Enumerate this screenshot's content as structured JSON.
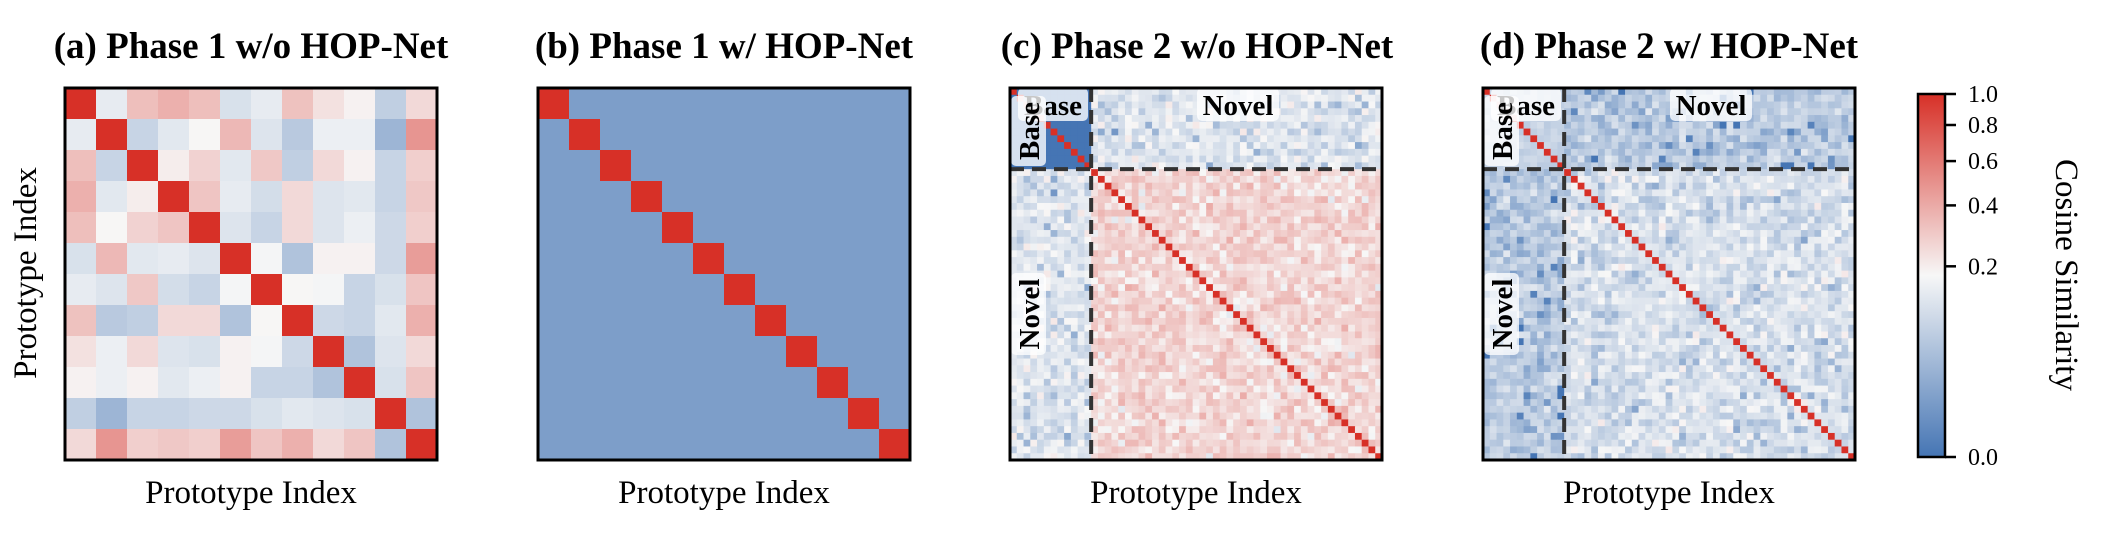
{
  "colors": {
    "low": "#4575b4",
    "mid": "#f7f7f7",
    "high": "#d73027",
    "divider": "#333333"
  },
  "chart_data": [
    {
      "type": "heatmap",
      "title": "(a) Phase 1 w/o HOP-Net",
      "xlabel": "Prototype Index",
      "ylabel": "Prototype Index",
      "matrix": [
        [
          1,
          0.14,
          0.33,
          0.38,
          0.33,
          0.11,
          0.14,
          0.32,
          0.23,
          0.19,
          0.07,
          0.25
        ],
        [
          0.14,
          1,
          0.08,
          0.13,
          0.18,
          0.35,
          0.12,
          0.06,
          0.15,
          0.15,
          0.03,
          0.48
        ],
        [
          0.33,
          0.08,
          1,
          0.2,
          0.27,
          0.13,
          0.3,
          0.07,
          0.25,
          0.19,
          0.08,
          0.28
        ],
        [
          0.38,
          0.13,
          0.2,
          1,
          0.31,
          0.14,
          0.1,
          0.25,
          0.12,
          0.13,
          0.08,
          0.3
        ],
        [
          0.33,
          0.18,
          0.27,
          0.31,
          1,
          0.12,
          0.08,
          0.25,
          0.12,
          0.15,
          0.09,
          0.28
        ],
        [
          0.11,
          0.35,
          0.13,
          0.14,
          0.12,
          1,
          0.17,
          0.05,
          0.19,
          0.19,
          0.09,
          0.45
        ],
        [
          0.14,
          0.12,
          0.3,
          0.1,
          0.08,
          0.17,
          1,
          0.18,
          0.17,
          0.08,
          0.11,
          0.31
        ],
        [
          0.32,
          0.06,
          0.07,
          0.25,
          0.25,
          0.05,
          0.18,
          1,
          0.09,
          0.08,
          0.13,
          0.38
        ],
        [
          0.23,
          0.15,
          0.25,
          0.12,
          0.11,
          0.19,
          0.17,
          0.09,
          1,
          0.05,
          0.12,
          0.25
        ],
        [
          0.19,
          0.15,
          0.19,
          0.13,
          0.15,
          0.19,
          0.08,
          0.08,
          0.05,
          1,
          0.11,
          0.31
        ],
        [
          0.07,
          0.03,
          0.08,
          0.08,
          0.09,
          0.09,
          0.11,
          0.13,
          0.12,
          0.11,
          1,
          0.05
        ],
        [
          0.25,
          0.48,
          0.28,
          0.3,
          0.28,
          0.45,
          0.31,
          0.38,
          0.25,
          0.31,
          0.05,
          1
        ]
      ]
    },
    {
      "type": "heatmap",
      "title": "(b) Phase 1 w/ HOP-Net",
      "xlabel": "Prototype Index",
      "size": 12,
      "diagonal": 1.0,
      "off_diagonal": 0.01
    },
    {
      "type": "heatmap",
      "title": "(c) Phase 2 w/o HOP-Net",
      "xlabel": "Prototype Index",
      "size": 55,
      "base_count": 12,
      "diagonal": 1.0,
      "base_base_offdiag": 0.0,
      "base_novel_mean": 0.12,
      "novel_novel_mean": 0.26,
      "region_labels": {
        "base": "Base",
        "novel": "Novel"
      }
    },
    {
      "type": "heatmap",
      "title": "(d) Phase 2 w/ HOP-Net",
      "xlabel": "Prototype Index",
      "size": 55,
      "base_count": 12,
      "diagonal": 1.0,
      "base_base_offdiag": 0.06,
      "base_novel_mean": 0.06,
      "novel_novel_mean": 0.11,
      "region_labels": {
        "base": "Base",
        "novel": "Novel"
      }
    }
  ],
  "colorbar": {
    "label": "Cosine Similarity",
    "range": [
      0.0,
      1.0
    ],
    "norm": "power",
    "gamma": 0.4,
    "ticks": [
      "0.0",
      "0.2",
      "0.4",
      "0.6",
      "0.8",
      "1.0"
    ]
  }
}
